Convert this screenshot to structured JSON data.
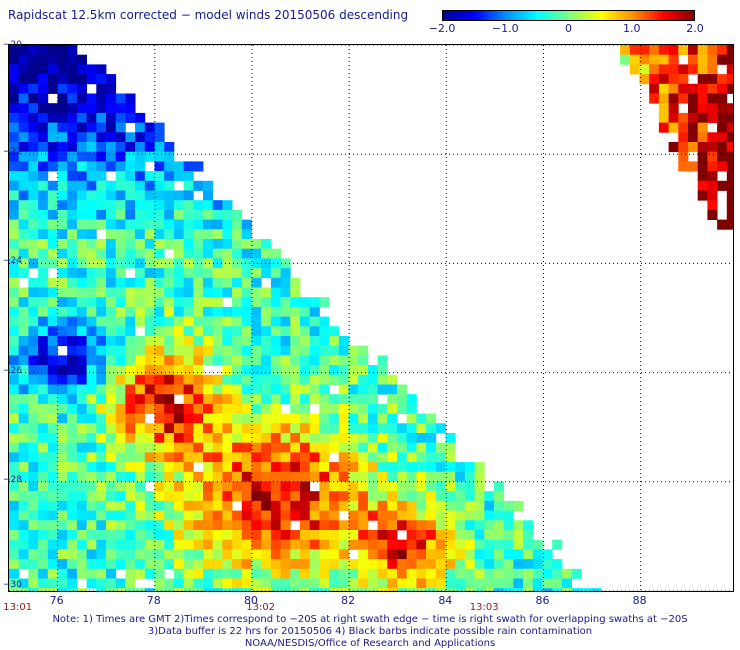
{
  "title": "Rapidscat 12.5km corrected − model winds 20150506 descending",
  "colorbar": {
    "min": -2.0,
    "max": 2.0,
    "tick_labels": [
      "−2.0",
      "−1.0",
      "0",
      "1.0",
      "2.0"
    ],
    "tick_values": [
      -2.0,
      -1.0,
      0.0,
      1.0,
      2.0
    ],
    "colormap": [
      "#00008f",
      "#0000ff",
      "#0090ff",
      "#00ffff",
      "#7fff7f",
      "#ffff00",
      "#ff8f00",
      "#ff0000",
      "#7f0000"
    ]
  },
  "map": {
    "lon_range": [
      75,
      89.9
    ],
    "lat_range": [
      -20,
      -30
    ],
    "lat_labels": [
      "−20",
      "−22",
      "−24",
      "−26",
      "−28",
      "−30"
    ],
    "lat_values": [
      -20,
      -22,
      -24,
      -26,
      -28,
      -30
    ],
    "lon_labels": [
      "76",
      "78",
      "80",
      "82",
      "84",
      "86",
      "88"
    ],
    "lon_values": [
      76,
      78,
      80,
      82,
      84,
      86,
      88
    ],
    "grid": "dotted",
    "time_labels": [
      {
        "text": "13:01",
        "lon": 75.2
      },
      {
        "text": "13:02",
        "lon": 80.2
      },
      {
        "text": "13:03",
        "lon": 84.8
      }
    ],
    "field": "wind speed difference (m/s), satellite minus model"
  },
  "notes": [
    "Note: 1) Times are GMT 2)Times correspond to −20S at right swath edge − time is right swath for overlapping swaths at −20S",
    "3)Data buffer is 22 hrs for 20150506 4) Black barbs indicate possible rain contamination",
    "NOAA/NESDIS/Office of Research and Applications"
  ],
  "colors": {
    "frame": "#000000",
    "text": "#1a1a8c",
    "time_text": "#8b1a1a",
    "grid": "#000000"
  }
}
